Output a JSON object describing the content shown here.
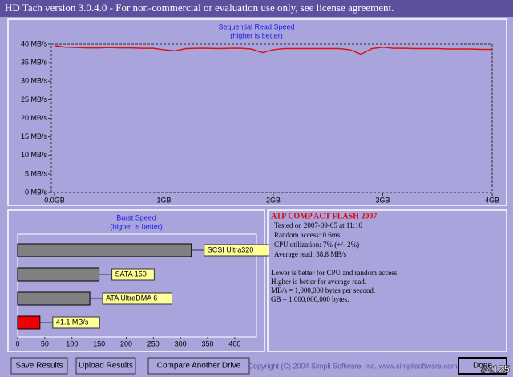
{
  "window": {
    "title": "HD Tach version 3.0.4.0  - For non-commercial or evaluation use only, see license agreement."
  },
  "chart_data": [
    {
      "type": "line",
      "title": "Sequential Read Speed",
      "subtitle": "(higher is better)",
      "color": "#e01010",
      "x": [
        0,
        0.1,
        0.2,
        0.3,
        0.4,
        0.5,
        0.6,
        0.7,
        0.8,
        0.9,
        1.0,
        1.1,
        1.2,
        1.3,
        1.4,
        1.5,
        1.6,
        1.7,
        1.8,
        1.9,
        2.0,
        2.1,
        2.2,
        2.3,
        2.4,
        2.5,
        2.6,
        2.7,
        2.8,
        2.9,
        3.0,
        3.1,
        3.2,
        3.3,
        3.4,
        3.5,
        3.6,
        3.7,
        3.8,
        3.9,
        4.0
      ],
      "values": [
        39.6,
        39.2,
        39.1,
        39.0,
        39.0,
        39.1,
        39.0,
        39.0,
        38.9,
        38.9,
        38.5,
        38.2,
        38.8,
        38.9,
        38.9,
        38.8,
        38.9,
        38.9,
        38.7,
        37.7,
        38.5,
        38.8,
        38.8,
        38.8,
        38.8,
        38.8,
        38.8,
        38.5,
        37.3,
        38.8,
        39.2,
        38.9,
        38.9,
        38.8,
        38.8,
        38.8,
        38.7,
        38.7,
        38.7,
        38.6,
        38.6
      ],
      "xlim": [
        0,
        4
      ],
      "xticks": [
        {
          "value": 0,
          "label": "0.0GB"
        },
        {
          "value": 1,
          "label": "1GB"
        },
        {
          "value": 2,
          "label": "2GB"
        },
        {
          "value": 3,
          "label": "3GB"
        },
        {
          "value": 4,
          "label": "4GB"
        }
      ],
      "ylim": [
        0,
        40
      ],
      "yticks": [
        {
          "value": 0,
          "label": "0 MB/s"
        },
        {
          "value": 5,
          "label": "5 MB/s"
        },
        {
          "value": 10,
          "label": "10 MB/s"
        },
        {
          "value": 15,
          "label": "15 MB/s"
        },
        {
          "value": 20,
          "label": "20 MB/s"
        },
        {
          "value": 25,
          "label": "25 MB/s"
        },
        {
          "value": 30,
          "label": "30 MB/s"
        },
        {
          "value": 35,
          "label": "35 MB/s"
        },
        {
          "value": 40,
          "label": "40 MB/s"
        }
      ]
    },
    {
      "type": "hbar",
      "title": "Burst Speed",
      "subtitle": "(higher is better)",
      "categories": [
        "SCSI Ultra320",
        "SATA 150",
        "ATA UltraDMA 6",
        null
      ],
      "values": [
        320,
        150,
        133,
        41.1
      ],
      "value_labels": [
        null,
        null,
        null,
        "41.1 MB/s"
      ],
      "colors": [
        "#808080",
        "#808080",
        "#808080",
        "#ee0000"
      ],
      "xlim": [
        0,
        440
      ],
      "xticks": [
        0,
        50,
        100,
        150,
        200,
        250,
        300,
        350,
        400
      ]
    }
  ],
  "info": {
    "drive": "ATP COMP ACT FLASH 2007",
    "lines": [
      "Tested on 2007-09-05 at 11:10",
      "Random access: 0.6ms",
      "CPU utilization: 7% (+/- 2%)",
      "Average read: 38.8 MB/s"
    ],
    "notes": [
      "Lower is better for CPU and random access.",
      "Higher is better for average read.",
      "MB/s = 1,000,000 bytes per second.",
      "GB = 1,000,000,000 bytes."
    ]
  },
  "buttons": [
    "Save Results",
    "Upload Results",
    "Compare Another Drive",
    "Done"
  ],
  "copyright": "Copyright (C) 2004 Simpli Software, Inc. www.simplisoftware.com",
  "watermark": "#4125"
}
